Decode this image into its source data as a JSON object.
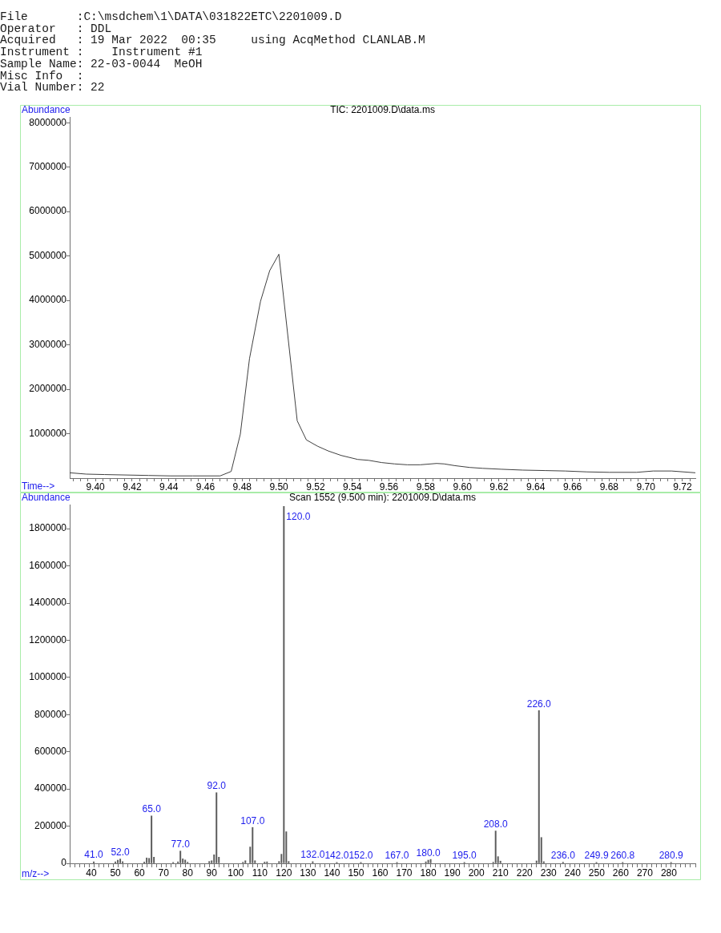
{
  "chart_data": [
    {
      "type": "other",
      "annotations": [
        "File       :C:\\msdchem\\1\\DATA\\031822ETC\\2201009.D",
        "Operator   : DDL",
        "Acquired   : 19 Mar 2022  00:35     using AcqMethod CLANLAB.M",
        "Instrument :    Instrument #1",
        "Sample Name: 22-03-0044  MeOH",
        "Misc Info  :",
        "Vial Number: 22"
      ]
    },
    {
      "type": "line",
      "title": "TIC: 2201009.D\\data.ms",
      "xlabel": "Time-->",
      "ylabel": "Abundance",
      "color": "#404040",
      "x": [
        9.386,
        9.395,
        9.405,
        9.417,
        9.429,
        9.441,
        9.453,
        9.468,
        9.474,
        9.479,
        9.484,
        9.49,
        9.495,
        9.5,
        9.51,
        9.515,
        9.521,
        9.527,
        9.534,
        9.543,
        9.549,
        9.556,
        9.563,
        9.57,
        9.577,
        9.586,
        9.59,
        9.596,
        9.604,
        9.611,
        9.621,
        9.633,
        9.645,
        9.656,
        9.668,
        9.68,
        9.695,
        9.704,
        9.714,
        9.727
      ],
      "values": [
        120000,
        90000,
        80000,
        70000,
        60000,
        50000,
        50000,
        50000,
        150000,
        990000,
        2690000,
        3980000,
        4670000,
        5040000,
        1290000,
        860000,
        720000,
        610000,
        510000,
        420000,
        400000,
        350000,
        320000,
        300000,
        300000,
        330000,
        320000,
        280000,
        240000,
        220000,
        200000,
        180000,
        170000,
        160000,
        140000,
        130000,
        130000,
        160000,
        160000,
        120000
      ],
      "xlim": [
        9.386,
        9.727
      ],
      "ylim": [
        0,
        8130000
      ],
      "xticks": [
        {
          "value": 9.388,
          "label": null
        },
        {
          "value": 9.392,
          "label": null
        },
        {
          "value": 9.396,
          "label": null
        },
        {
          "value": 9.4,
          "label": "9.40"
        },
        {
          "value": 9.404,
          "label": null
        },
        {
          "value": 9.408,
          "label": null
        },
        {
          "value": 9.412,
          "label": null
        },
        {
          "value": 9.416,
          "label": null
        },
        9.42,
        {
          "value": 9.424,
          "label": null
        },
        {
          "value": 9.428,
          "label": null
        },
        {
          "value": 9.432,
          "label": null
        },
        {
          "value": 9.436,
          "label": null
        },
        9.44,
        {
          "value": 9.444,
          "label": null
        },
        {
          "value": 9.448,
          "label": null
        },
        {
          "value": 9.452,
          "label": null
        },
        {
          "value": 9.456,
          "label": null
        },
        9.46,
        {
          "value": 9.464,
          "label": null
        },
        {
          "value": 9.468,
          "label": null
        },
        {
          "value": 9.472,
          "label": null
        },
        {
          "value": 9.476,
          "label": null
        },
        9.48,
        {
          "value": 9.484,
          "label": null
        },
        {
          "value": 9.488,
          "label": null
        },
        {
          "value": 9.492,
          "label": null
        },
        {
          "value": 9.496,
          "label": null
        },
        {
          "value": 9.5,
          "label": "9.50"
        },
        {
          "value": 9.504,
          "label": null
        },
        {
          "value": 9.508,
          "label": null
        },
        {
          "value": 9.512,
          "label": null
        },
        {
          "value": 9.516,
          "label": null
        },
        9.52,
        {
          "value": 9.524,
          "label": null
        },
        {
          "value": 9.528,
          "label": null
        },
        {
          "value": 9.532,
          "label": null
        },
        {
          "value": 9.536,
          "label": null
        },
        9.54,
        {
          "value": 9.544,
          "label": null
        },
        {
          "value": 9.548,
          "label": null
        },
        {
          "value": 9.552,
          "label": null
        },
        {
          "value": 9.556,
          "label": null
        },
        9.56,
        {
          "value": 9.564,
          "label": null
        },
        {
          "value": 9.568,
          "label": null
        },
        {
          "value": 9.572,
          "label": null
        },
        {
          "value": 9.576,
          "label": null
        },
        9.58,
        {
          "value": 9.584,
          "label": null
        },
        {
          "value": 9.588,
          "label": null
        },
        {
          "value": 9.592,
          "label": null
        },
        {
          "value": 9.596,
          "label": null
        },
        {
          "value": 9.6,
          "label": "9.60"
        },
        {
          "value": 9.604,
          "label": null
        },
        {
          "value": 9.608,
          "label": null
        },
        {
          "value": 9.612,
          "label": null
        },
        {
          "value": 9.616,
          "label": null
        },
        9.62,
        {
          "value": 9.624,
          "label": null
        },
        {
          "value": 9.628,
          "label": null
        },
        {
          "value": 9.632,
          "label": null
        },
        {
          "value": 9.636,
          "label": null
        },
        9.64,
        {
          "value": 9.644,
          "label": null
        },
        {
          "value": 9.648,
          "label": null
        },
        {
          "value": 9.652,
          "label": null
        },
        {
          "value": 9.656,
          "label": null
        },
        9.66,
        {
          "value": 9.664,
          "label": null
        },
        {
          "value": 9.668,
          "label": null
        },
        {
          "value": 9.672,
          "label": null
        },
        {
          "value": 9.676,
          "label": null
        },
        9.68,
        {
          "value": 9.684,
          "label": null
        },
        {
          "value": 9.688,
          "label": null
        },
        {
          "value": 9.692,
          "label": null
        },
        {
          "value": 9.696,
          "label": null
        },
        {
          "value": 9.7,
          "label": "9.70"
        },
        {
          "value": 9.704,
          "label": null
        },
        {
          "value": 9.708,
          "label": null
        },
        {
          "value": 9.712,
          "label": null
        },
        {
          "value": 9.716,
          "label": null
        },
        9.72,
        {
          "value": 9.724,
          "label": null
        }
      ],
      "yticks": [
        1000000,
        2000000,
        3000000,
        4000000,
        5000000,
        6000000,
        7000000,
        8000000
      ]
    },
    {
      "type": "bar",
      "title": "Scan 1552 (9.500 min): 2201009.D\\data.ms",
      "xlabel": "m/z-->",
      "ylabel": "Abundance",
      "color": "#5a5a5a",
      "x": [
        41,
        50,
        51,
        52,
        53,
        62,
        63,
        64,
        65,
        66,
        74,
        76,
        77,
        78,
        79,
        80,
        89,
        90,
        91,
        92,
        93,
        103,
        104,
        106,
        107,
        108,
        112,
        113,
        118,
        119,
        120,
        121,
        122,
        132,
        142,
        152,
        167,
        179,
        180,
        181,
        195,
        207,
        208,
        209,
        210,
        225,
        226,
        227,
        228,
        236,
        249.9,
        260.8,
        280.9
      ],
      "values": [
        8000,
        8000,
        17000,
        23000,
        9000,
        7000,
        29000,
        27000,
        255000,
        33000,
        5000,
        8000,
        66000,
        24000,
        18000,
        6000,
        10000,
        14000,
        46000,
        380000,
        33000,
        6000,
        14000,
        88000,
        193000,
        14000,
        7000,
        8000,
        10000,
        49000,
        1920000,
        170000,
        10000,
        9000,
        5000,
        5000,
        5000,
        8000,
        17000,
        21000,
        5000,
        6000,
        174000,
        36000,
        12000,
        13000,
        822000,
        139000,
        9000,
        6000,
        5000,
        5000,
        5000
      ],
      "annotations": [
        {
          "text": "41.0",
          "x": 41,
          "y": 8000
        },
        {
          "text": "52.0",
          "x": 52,
          "y": 23000
        },
        {
          "text": "65.0",
          "x": 65,
          "y": 255000
        },
        {
          "text": "77.0",
          "x": 77,
          "y": 66000
        },
        {
          "text": "92.0",
          "x": 92,
          "y": 380000
        },
        {
          "text": "107.0",
          "x": 107,
          "y": 193000
        },
        {
          "text": "120.0",
          "x": 120,
          "y": 1920000
        },
        {
          "text": "132.0",
          "x": 132,
          "y": 9000
        },
        {
          "text": "142.0",
          "x": 142,
          "y": 5000
        },
        {
          "text": "152.0",
          "x": 152,
          "y": 5000
        },
        {
          "text": "167.0",
          "x": 167,
          "y": 5000
        },
        {
          "text": "180.0",
          "x": 180,
          "y": 17000
        },
        {
          "text": "195.0",
          "x": 195,
          "y": 5000
        },
        {
          "text": "208.0",
          "x": 208,
          "y": 174000
        },
        {
          "text": "226.0",
          "x": 226,
          "y": 822000
        },
        {
          "text": "236.0",
          "x": 236,
          "y": 6000
        },
        {
          "text": "249.9",
          "x": 249.9,
          "y": 5000
        },
        {
          "text": "260.8",
          "x": 260.8,
          "y": 5000
        },
        {
          "text": "280.9",
          "x": 280.9,
          "y": 5000
        }
      ],
      "xlim": [
        31,
        291
      ],
      "ylim": [
        0,
        1930000
      ],
      "xticks": [
        {
          "value": 32,
          "label": null
        },
        {
          "value": 34,
          "label": null
        },
        {
          "value": 36,
          "label": null
        },
        {
          "value": 38,
          "label": null
        },
        40,
        {
          "value": 42,
          "label": null
        },
        {
          "value": 44,
          "label": null
        },
        {
          "value": 46,
          "label": null
        },
        {
          "value": 48,
          "label": null
        },
        50,
        {
          "value": 52,
          "label": null
        },
        {
          "value": 54,
          "label": null
        },
        {
          "value": 56,
          "label": null
        },
        {
          "value": 58,
          "label": null
        },
        60,
        {
          "value": 62,
          "label": null
        },
        {
          "value": 64,
          "label": null
        },
        {
          "value": 66,
          "label": null
        },
        {
          "value": 68,
          "label": null
        },
        70,
        {
          "value": 72,
          "label": null
        },
        {
          "value": 74,
          "label": null
        },
        {
          "value": 76,
          "label": null
        },
        {
          "value": 78,
          "label": null
        },
        80,
        {
          "value": 82,
          "label": null
        },
        {
          "value": 84,
          "label": null
        },
        {
          "value": 86,
          "label": null
        },
        {
          "value": 88,
          "label": null
        },
        90,
        {
          "value": 92,
          "label": null
        },
        {
          "value": 94,
          "label": null
        },
        {
          "value": 96,
          "label": null
        },
        {
          "value": 98,
          "label": null
        },
        100,
        {
          "value": 102,
          "label": null
        },
        {
          "value": 104,
          "label": null
        },
        {
          "value": 106,
          "label": null
        },
        {
          "value": 108,
          "label": null
        },
        110,
        {
          "value": 112,
          "label": null
        },
        {
          "value": 114,
          "label": null
        },
        {
          "value": 116,
          "label": null
        },
        {
          "value": 118,
          "label": null
        },
        120,
        {
          "value": 122,
          "label": null
        },
        {
          "value": 124,
          "label": null
        },
        {
          "value": 126,
          "label": null
        },
        {
          "value": 128,
          "label": null
        },
        130,
        {
          "value": 132,
          "label": null
        },
        {
          "value": 134,
          "label": null
        },
        {
          "value": 136,
          "label": null
        },
        {
          "value": 138,
          "label": null
        },
        140,
        {
          "value": 142,
          "label": null
        },
        {
          "value": 144,
          "label": null
        },
        {
          "value": 146,
          "label": null
        },
        {
          "value": 148,
          "label": null
        },
        150,
        {
          "value": 152,
          "label": null
        },
        {
          "value": 154,
          "label": null
        },
        {
          "value": 156,
          "label": null
        },
        {
          "value": 158,
          "label": null
        },
        160,
        {
          "value": 162,
          "label": null
        },
        {
          "value": 164,
          "label": null
        },
        {
          "value": 166,
          "label": null
        },
        {
          "value": 168,
          "label": null
        },
        170,
        {
          "value": 172,
          "label": null
        },
        {
          "value": 174,
          "label": null
        },
        {
          "value": 176,
          "label": null
        },
        {
          "value": 178,
          "label": null
        },
        180,
        {
          "value": 182,
          "label": null
        },
        {
          "value": 184,
          "label": null
        },
        {
          "value": 186,
          "label": null
        },
        {
          "value": 188,
          "label": null
        },
        190,
        {
          "value": 192,
          "label": null
        },
        {
          "value": 194,
          "label": null
        },
        {
          "value": 196,
          "label": null
        },
        {
          "value": 198,
          "label": null
        },
        200,
        {
          "value": 202,
          "label": null
        },
        {
          "value": 204,
          "label": null
        },
        {
          "value": 206,
          "label": null
        },
        {
          "value": 208,
          "label": null
        },
        210,
        {
          "value": 212,
          "label": null
        },
        {
          "value": 214,
          "label": null
        },
        {
          "value": 216,
          "label": null
        },
        {
          "value": 218,
          "label": null
        },
        220,
        {
          "value": 222,
          "label": null
        },
        {
          "value": 224,
          "label": null
        },
        {
          "value": 226,
          "label": null
        },
        {
          "value": 228,
          "label": null
        },
        230,
        {
          "value": 232,
          "label": null
        },
        {
          "value": 234,
          "label": null
        },
        {
          "value": 236,
          "label": null
        },
        {
          "value": 238,
          "label": null
        },
        240,
        {
          "value": 242,
          "label": null
        },
        {
          "value": 244,
          "label": null
        },
        {
          "value": 246,
          "label": null
        },
        {
          "value": 248,
          "label": null
        },
        250,
        {
          "value": 252,
          "label": null
        },
        {
          "value": 254,
          "label": null
        },
        {
          "value": 256,
          "label": null
        },
        {
          "value": 258,
          "label": null
        },
        260,
        {
          "value": 262,
          "label": null
        },
        {
          "value": 264,
          "label": null
        },
        {
          "value": 266,
          "label": null
        },
        {
          "value": 268,
          "label": null
        },
        270,
        {
          "value": 272,
          "label": null
        },
        {
          "value": 274,
          "label": null
        },
        {
          "value": 276,
          "label": null
        },
        {
          "value": 278,
          "label": null
        },
        280,
        {
          "value": 282,
          "label": null
        },
        {
          "value": 284,
          "label": null
        },
        {
          "value": 286,
          "label": null
        },
        {
          "value": 288,
          "label": null
        },
        {
          "value": 290,
          "label": null
        }
      ],
      "yticks": [
        0,
        200000,
        400000,
        600000,
        800000,
        1000000,
        1200000,
        1400000,
        1600000,
        1800000
      ]
    }
  ]
}
